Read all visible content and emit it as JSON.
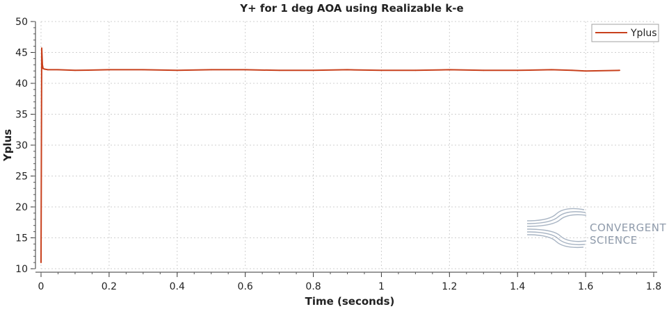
{
  "chart_data": {
    "type": "line",
    "title": "Y+ for 1 deg AOA using Realizable k-e",
    "xlabel": "Time (seconds)",
    "ylabel": "Yplus",
    "xlim": [
      0,
      1.8
    ],
    "ylim": [
      10,
      50
    ],
    "xticks": [
      "0",
      "0.2",
      "0.4",
      "0.6",
      "0.8",
      "1",
      "1.2",
      "1.4",
      "1.6",
      "1.8"
    ],
    "yticks": [
      "10",
      "15",
      "20",
      "25",
      "30",
      "35",
      "40",
      "45",
      "50"
    ],
    "grid": true,
    "legend_position": "top-right",
    "series": [
      {
        "name": "Yplus",
        "color": "#c8401c",
        "x": [
          0.0,
          0.002,
          0.004,
          0.006,
          0.01,
          0.02,
          0.05,
          0.1,
          0.2,
          0.3,
          0.4,
          0.5,
          0.6,
          0.7,
          0.8,
          0.9,
          1.0,
          1.1,
          1.2,
          1.3,
          1.4,
          1.5,
          1.56,
          1.6,
          1.7
        ],
        "y": [
          11.0,
          45.7,
          43.0,
          42.4,
          42.3,
          42.2,
          42.2,
          42.1,
          42.2,
          42.2,
          42.1,
          42.2,
          42.2,
          42.1,
          42.1,
          42.2,
          42.1,
          42.1,
          42.2,
          42.1,
          42.1,
          42.2,
          42.1,
          42.0,
          42.1
        ]
      }
    ]
  },
  "watermark": {
    "line1": "CONVERGENT",
    "line2": "SCIENCE"
  }
}
